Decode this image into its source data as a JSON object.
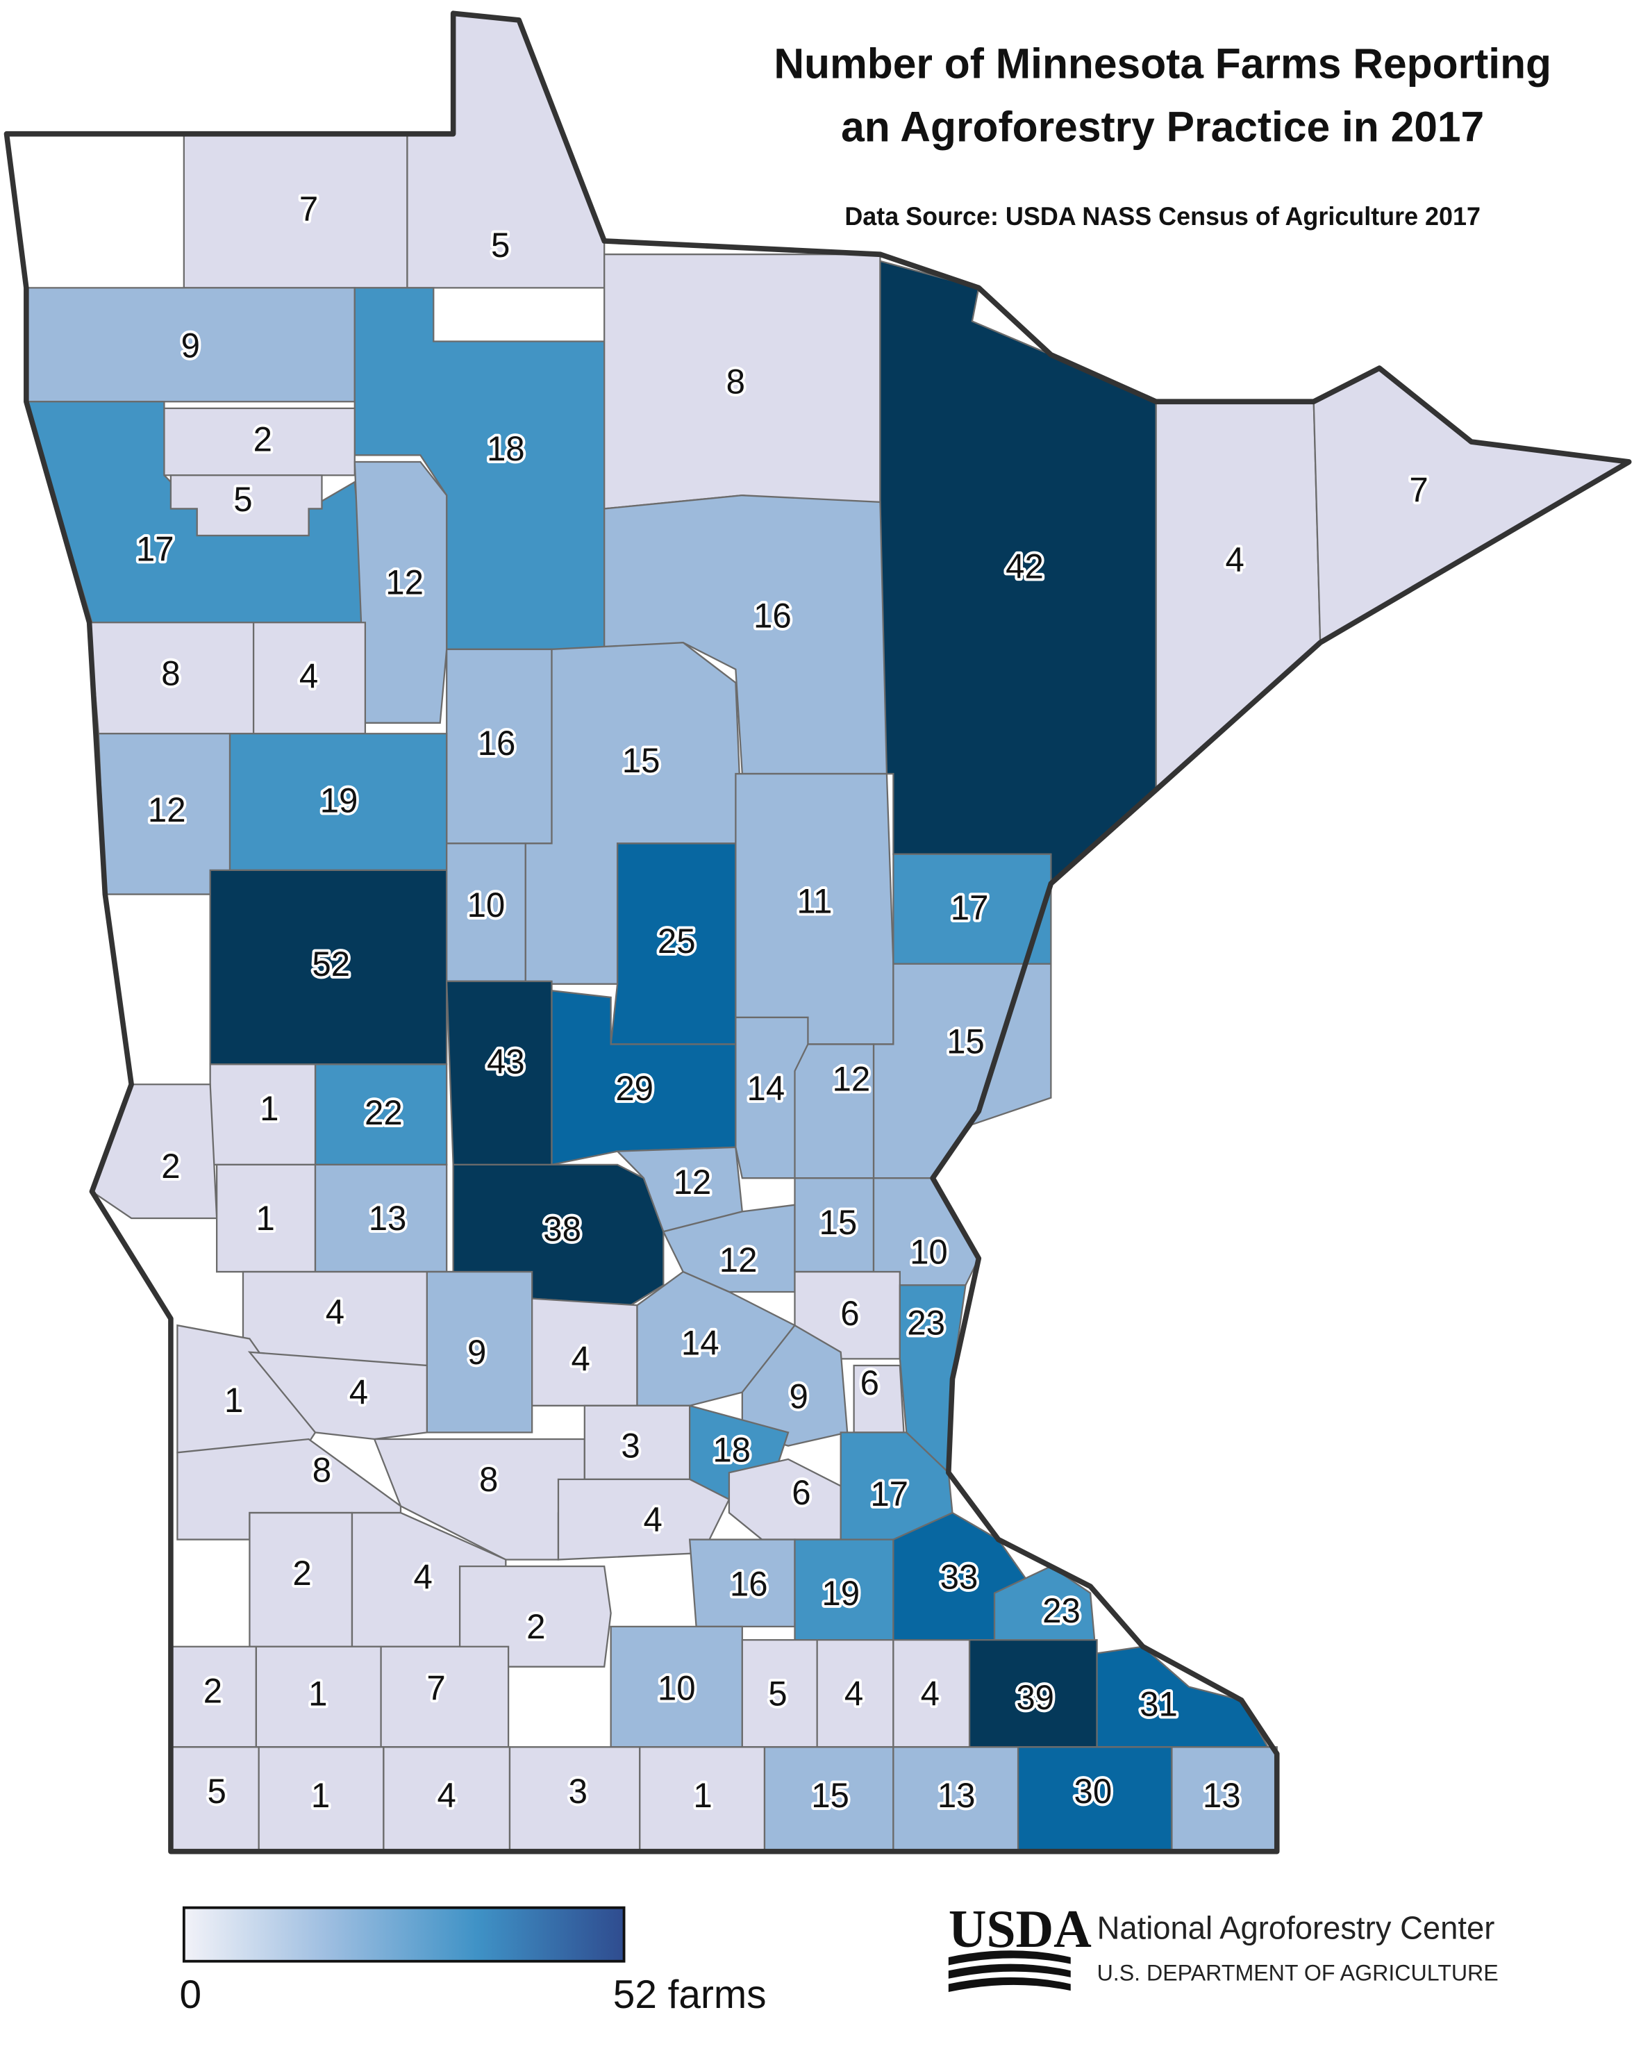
{
  "chart_data": {
    "type": "choropleth",
    "title": [
      "Number of Minnesota Farms Reporting",
      "an Agroforestry Practice in 2017"
    ],
    "subtitle": "Data Source: USDA NASS Census of Agriculture 2017",
    "values": [
      7,
      5,
      9,
      18,
      8,
      42,
      4,
      7,
      17,
      2,
      5,
      12,
      8,
      4,
      16,
      16,
      15,
      12,
      19,
      52,
      10,
      25,
      11,
      17,
      15,
      43,
      29,
      14,
      12,
      22,
      1,
      2,
      1,
      13,
      38,
      12,
      12,
      15,
      10,
      6,
      23,
      4,
      9,
      4,
      14,
      9,
      6,
      1,
      4,
      8,
      8,
      3,
      18,
      4,
      6,
      17,
      2,
      4,
      2,
      16,
      19,
      33,
      23,
      2,
      1,
      7,
      10,
      5,
      4,
      4,
      39,
      31,
      5,
      1,
      4,
      3,
      1,
      15,
      13,
      30,
      13
    ],
    "color_classes": [
      {
        "max": 8,
        "color": "#dcdcec"
      },
      {
        "max": 16,
        "color": "#9dbadb"
      },
      {
        "max": 23,
        "color": "#4294c4"
      },
      {
        "max": 33,
        "color": "#0867a1"
      },
      {
        "max": 52,
        "color": "#05395a"
      }
    ],
    "legend": {
      "ticks": [
        0,
        {
          "value": 52,
          "label": "52 farms"
        }
      ],
      "colors": [
        "#f2f2f8",
        "#9cbde0",
        "#3f92c6",
        "#2f4c8f"
      ]
    },
    "footer": {
      "logo": "USDA",
      "org": "National Agroforestry Center",
      "dept": "U.S. DEPARTMENT OF AGRICULTURE"
    }
  }
}
